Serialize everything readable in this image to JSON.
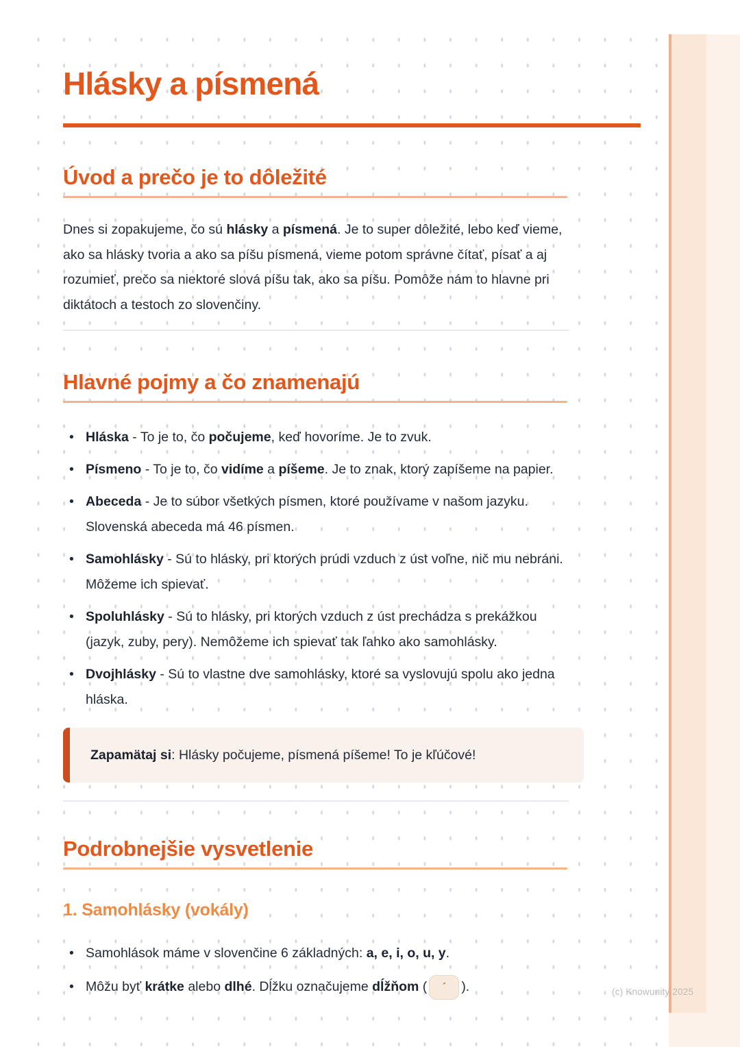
{
  "page": {
    "title": "Hlásky a písmená",
    "watermark": "(c) Knowunity 2025",
    "colors": {
      "primary_orange": "#e2571c",
      "heading_rule_light": "#f3b48c",
      "subheading_orange": "#ef8b42",
      "body_text": "#242b38",
      "callout_background": "#f8f1ec",
      "callout_bar": "#c84e1e",
      "side_band": "#fbe7d7",
      "side_band_edge": "#f1af89",
      "dot_grid": "#d6d8e0"
    }
  },
  "sections": {
    "intro": {
      "heading": "Úvod a prečo je to dôležité",
      "paragraph_segments": [
        {
          "t": "Dnes si zopakujeme, čo sú "
        },
        {
          "t": "hlásky",
          "b": true
        },
        {
          "t": " a "
        },
        {
          "t": "písmená",
          "b": true
        },
        {
          "t": ". Je to super dôležité, lebo keď vieme, ako sa hlásky tvoria a ako sa píšu písmená, vieme potom správne čítať, písať a aj rozumieť, prečo sa niektoré slová píšu tak, ako sa píšu. Pomôže nám to hlavne pri diktátoch a testoch zo slovenčiny."
        }
      ]
    },
    "concepts": {
      "heading": "Hlavné pojmy a čo znamenajú",
      "bullets": [
        [
          {
            "t": "Hláska",
            "b": true
          },
          {
            "t": " - To je to, čo "
          },
          {
            "t": "počujeme",
            "b": true
          },
          {
            "t": ", keď hovoríme. Je to zvuk."
          }
        ],
        [
          {
            "t": "Písmeno",
            "b": true
          },
          {
            "t": " - To je to, čo "
          },
          {
            "t": "vidíme",
            "b": true
          },
          {
            "t": " a "
          },
          {
            "t": "píšeme",
            "b": true
          },
          {
            "t": ". Je to znak, ktorý zapíšeme na papier."
          }
        ],
        [
          {
            "t": "Abeceda",
            "b": true
          },
          {
            "t": " - Je to súbor všetkých písmen, ktoré používame v našom jazyku. Slovenská abeceda má 46 písmen."
          }
        ],
        [
          {
            "t": "Samohlásky",
            "b": true
          },
          {
            "t": " - Sú to hlásky, pri ktorých prúdi vzduch z úst voľne, nič mu nebráni. Môžeme ich spievať."
          }
        ],
        [
          {
            "t": "Spoluhlásky",
            "b": true
          },
          {
            "t": " - Sú to hlásky, pri ktorých vzduch z úst prechádza s prekážkou (jazyk, zuby, pery). Nemôžeme ich spievať tak ľahko ako samohlásky."
          }
        ],
        [
          {
            "t": "Dvojhlásky",
            "b": true
          },
          {
            "t": " - Sú to vlastne dve samohlásky, ktoré sa vyslovujú spolu ako jedna hláska."
          }
        ]
      ]
    },
    "callout": {
      "label": "Zapamätaj si",
      "text": ": Hlásky počujeme, písmená píšeme! To je kľúčové!"
    },
    "details": {
      "heading": "Podrobnejšie vysvetlenie",
      "sub_heading": "1. Samohlásky (vokály)",
      "bullets": [
        [
          {
            "t": "Samohlások máme v slovenčine 6 základných: "
          },
          {
            "t": "a, e, i, o, u, y",
            "b": true
          },
          {
            "t": "."
          }
        ],
        [
          {
            "t": "Môžu byť "
          },
          {
            "t": "krátke",
            "b": true
          },
          {
            "t": " alebo "
          },
          {
            "t": "dlhé",
            "b": true
          },
          {
            "t": ". Dĺžku označujeme "
          },
          {
            "t": "dĺžňom",
            "b": true
          },
          {
            "t": " ("
          },
          {
            "t": "´",
            "code": true
          },
          {
            "t": ")."
          }
        ]
      ]
    }
  }
}
